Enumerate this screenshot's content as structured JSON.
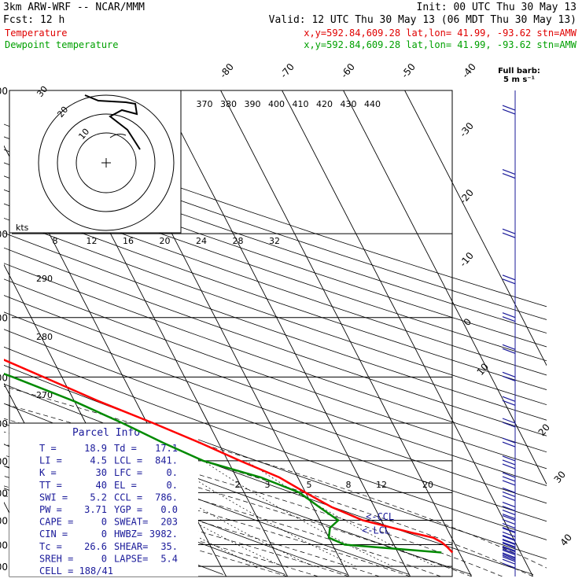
{
  "header": {
    "line1_left": "3km ARW-WRF -- NCAR/MMM",
    "line1_right": "Init: 00 UTC Thu 30 May 13",
    "line2_left": "Fcst:    12 h",
    "line2_right": "Valid: 12 UTC Thu 30 May 13 (06 MDT Thu 30 May 13)",
    "temp_label": "Temperature",
    "dew_label": "Dewpoint temperature",
    "temp_info": "x,y=592.84,609.28   lat,lon= 41.99, -93.62  stn=AMW",
    "dew_info": "x,y=592.84,609.28   lat,lon= 41.99, -93.62  stn=AMW"
  },
  "colors": {
    "temperature": "#ff0000",
    "dewpoint": "#008a00",
    "info_text": "#1a1a9a",
    "wind": "#1a1a9a",
    "grid": "#000000"
  },
  "barb_legend": {
    "line1": "Full barb:",
    "line2": "5 m s⁻¹"
  },
  "hodograph": {
    "units": "kts",
    "ring_labels": [
      "10",
      "20",
      "30"
    ]
  },
  "wind_scale_labels": [
    "8",
    "12",
    "16",
    "20",
    "24",
    "28",
    "32"
  ],
  "theta_top_labels": [
    "370",
    "380",
    "390",
    "400",
    "410",
    "420",
    "430",
    "440"
  ],
  "theta_left_labels": [
    "290",
    "280",
    "270"
  ],
  "mixing_ratio_labels": [
    "2",
    "3",
    "5",
    "8",
    "12",
    "20"
  ],
  "markers": {
    "ccl": "<-CCL",
    "lcl": "<-LCL"
  },
  "parcel_info": {
    "title": "Parcel Info",
    "rows": [
      [
        "T  =",
        "18.9",
        "Td =",
        "17.1"
      ],
      [
        "LI =",
        "4.5",
        "LCL =",
        "841."
      ],
      [
        "K  =",
        "30",
        "LFC =",
        "0."
      ],
      [
        "TT =",
        "40",
        "EL  =",
        "0."
      ],
      [
        "SWI =",
        "5.2",
        "CCL =",
        "786."
      ],
      [
        "PW =",
        "3.71",
        "YGP =",
        "0.0"
      ],
      [
        "CAPE =",
        "0",
        "SWEAT=",
        "203"
      ],
      [
        "CIN =",
        "0",
        "HWBZ=",
        "3982."
      ],
      [
        "Tc =",
        "26.6",
        "SHEAR=",
        "35."
      ],
      [
        "SREH =",
        "0",
        "LAPSE=",
        "5.4"
      ]
    ],
    "cell": "CELL = 188/41"
  },
  "chart_data": {
    "type": "line",
    "title": "",
    "xlabel": "",
    "ylabel": "",
    "y_scale": "log",
    "pressure_levels_hPa": [
      100,
      200,
      300,
      400,
      500,
      600,
      700,
      800,
      900,
      1000
    ],
    "pressure_tick_labels": [
      "100",
      "200",
      "300",
      "400",
      "500",
      "600",
      "700",
      "800",
      "900",
      "1000"
    ],
    "isotherm_labels_top": [
      "-80",
      "-70",
      "-60",
      "-50",
      "-40"
    ],
    "isotherm_labels_right": [
      "-30",
      "-20",
      "-10",
      "0",
      "10",
      "20",
      "30",
      "40"
    ],
    "series": [
      {
        "name": "Temperature",
        "pressure": [
          100,
          120,
          150,
          180,
          200,
          250,
          300,
          350,
          400,
          450,
          500,
          550,
          600,
          650,
          700,
          750,
          800,
          850,
          870,
          890,
          910,
          935
        ],
        "temperature_c": [
          -60,
          -62,
          -64,
          -66,
          -63,
          -57,
          -49,
          -41,
          -33,
          -26,
          -19,
          -13,
          -8,
          -3,
          0,
          3,
          7,
          14,
          17,
          18,
          18.5,
          18.9
        ]
      },
      {
        "name": "Dewpoint temperature",
        "pressure": [
          100,
          110,
          130,
          150,
          170,
          190,
          200,
          230,
          260,
          300,
          350,
          400,
          450,
          500,
          550,
          600,
          650,
          700,
          750,
          800,
          830,
          870,
          900,
          935
        ],
        "temperature_c": [
          -74,
          -92,
          -86,
          -74,
          -79,
          -87,
          -88,
          -80,
          -72,
          -61,
          -48,
          -38,
          -30,
          -24,
          -19,
          -14,
          -6,
          -1,
          1,
          3,
          1,
          0,
          2,
          17.1
        ]
      }
    ],
    "wind_barbs": {
      "pressure": [
        110,
        150,
        200,
        250,
        300,
        350,
        400,
        450,
        500,
        550,
        600,
        650,
        700,
        750,
        800,
        850,
        880,
        910,
        940,
        970
      ],
      "speed_kts": [
        15,
        15,
        15,
        15,
        15,
        15,
        15,
        15,
        15,
        20,
        25,
        30,
        30,
        35,
        35,
        40,
        40,
        40,
        30,
        25
      ]
    }
  }
}
